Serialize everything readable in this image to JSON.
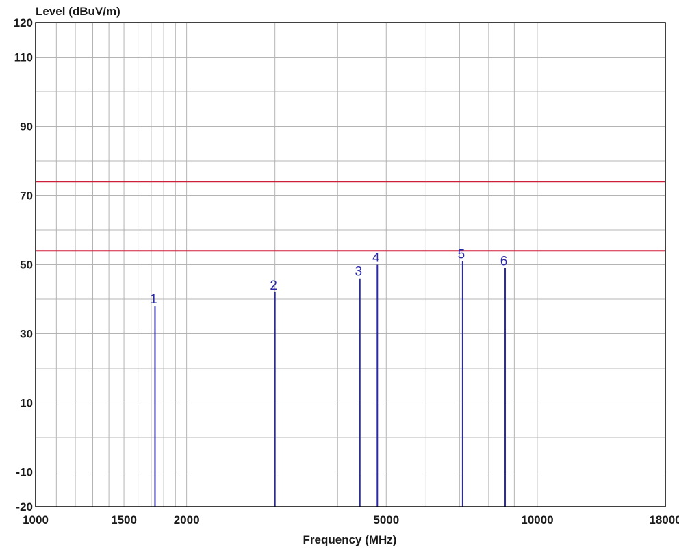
{
  "chart_data": {
    "type": "line",
    "title": "",
    "xlabel": "Frequency (MHz)",
    "ylabel": "Level (dBuV/m)",
    "x_scale": "log",
    "xlim": [
      1000,
      18000
    ],
    "ylim": [
      -20,
      120
    ],
    "x_ticks": [
      {
        "value": 1000,
        "label": "1000"
      },
      {
        "value": 1500,
        "label": "1500"
      },
      {
        "value": 2000,
        "label": "2000"
      },
      {
        "value": 5000,
        "label": "5000"
      },
      {
        "value": 10000,
        "label": "10000"
      },
      {
        "value": 18000,
        "label": "18000"
      }
    ],
    "y_ticks": [
      {
        "value": 120,
        "label": "120"
      },
      {
        "value": 110,
        "label": "110"
      },
      {
        "value": 90,
        "label": "90"
      },
      {
        "value": 70,
        "label": "70"
      },
      {
        "value": 50,
        "label": "50"
      },
      {
        "value": 30,
        "label": "30"
      },
      {
        "value": 10,
        "label": "10"
      },
      {
        "value": -10,
        "label": "-10"
      },
      {
        "value": -20,
        "label": "-20"
      }
    ],
    "y_grid": [
      120,
      110,
      100,
      90,
      80,
      70,
      60,
      50,
      40,
      30,
      20,
      10,
      0,
      -10,
      -20
    ],
    "x_grid": [
      1000,
      1100,
      1200,
      1300,
      1400,
      1500,
      1600,
      1700,
      1800,
      1900,
      2000,
      3000,
      4000,
      5000,
      6000,
      7000,
      8000,
      9000,
      10000,
      18000
    ],
    "grid": true,
    "limit_lines": [
      {
        "value": 74,
        "color": "#d01f3c"
      },
      {
        "value": 54,
        "color": "#d01f3c"
      }
    ],
    "markers": [
      {
        "label": "1",
        "x": 1730,
        "y": 38
      },
      {
        "label": "2",
        "x": 3000,
        "y": 42
      },
      {
        "label": "3",
        "x": 4430,
        "y": 46
      },
      {
        "label": "4",
        "x": 4800,
        "y": 50
      },
      {
        "label": "5",
        "x": 7100,
        "y": 51
      },
      {
        "label": "6",
        "x": 8630,
        "y": 49
      }
    ],
    "colors": {
      "marker": "#2a2aa8",
      "grid": "#b4b4b4",
      "frame": "#000000"
    }
  }
}
